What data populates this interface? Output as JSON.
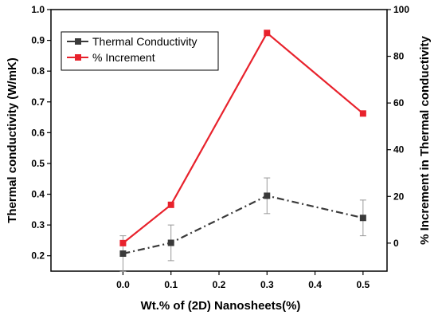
{
  "chart_data": {
    "type": "line",
    "xlabel": "Wt.% of (2D) Nanosheets(%)",
    "ylabel_left": "Thermal conductivity (W/mK)",
    "ylabel_right": "% Increment in Thermal conductivity",
    "xlim": [
      -0.15,
      0.55
    ],
    "ylim_left": [
      0.15,
      1.0
    ],
    "ylim_right": [
      -12,
      100
    ],
    "x_ticks": [
      0.0,
      0.1,
      0.2,
      0.3,
      0.4,
      0.5
    ],
    "y_left_ticks": [
      0.2,
      0.3,
      0.4,
      0.5,
      0.6,
      0.7,
      0.8,
      0.9,
      1.0
    ],
    "y_right_ticks": [
      0,
      20,
      40,
      60,
      80,
      100
    ],
    "grid": false,
    "legend_position": "top-left",
    "series": [
      {
        "name": "Thermal Conductivity",
        "axis": "left",
        "color": "#3a3a3a",
        "style": "dash-dot",
        "marker": "square",
        "x": [
          0.0,
          0.1,
          0.3,
          0.5
        ],
        "y": [
          0.207,
          0.242,
          0.395,
          0.323
        ],
        "error": [
          0.058,
          0.058,
          0.058,
          0.058
        ]
      },
      {
        "name": "% Increment",
        "axis": "right",
        "color": "#e8222c",
        "style": "solid",
        "marker": "square",
        "x": [
          0.0,
          0.1,
          0.3,
          0.5
        ],
        "y": [
          0,
          16.4,
          90,
          55.5
        ]
      }
    ]
  }
}
